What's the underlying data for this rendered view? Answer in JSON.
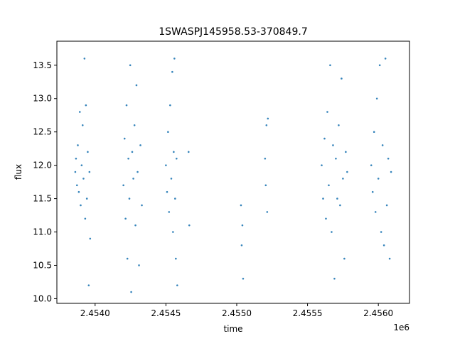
{
  "chart_data": {
    "type": "scatter",
    "title": "1SWASPJ145958.53-370849.7",
    "xlabel": "time",
    "ylabel": "flux",
    "x_offset_label": "1e6",
    "xlim": [
      2453730,
      2456220
    ],
    "ylim": [
      9.93,
      13.86
    ],
    "grid": false,
    "legend": "none",
    "marker_color": "#1f77b4",
    "x_ticks": [
      {
        "value": 2454000,
        "label": "2.4540"
      },
      {
        "value": 2454500,
        "label": "2.4545"
      },
      {
        "value": 2455000,
        "label": "2.4550"
      },
      {
        "value": 2455500,
        "label": "2.4555"
      },
      {
        "value": 2456000,
        "label": "2.4560"
      }
    ],
    "y_ticks": [
      {
        "value": 10.0,
        "label": "10.0"
      },
      {
        "value": 10.5,
        "label": "10.5"
      },
      {
        "value": 11.0,
        "label": "11.0"
      },
      {
        "value": 11.5,
        "label": "11.5"
      },
      {
        "value": 12.0,
        "label": "12.0"
      },
      {
        "value": 12.5,
        "label": "12.5"
      },
      {
        "value": 13.0,
        "label": "13.0"
      },
      {
        "value": 13.5,
        "label": "13.5"
      }
    ],
    "series": [
      {
        "values": [
          {
            "x": 2453860,
            "y": 11.9
          },
          {
            "x": 2453865,
            "y": 12.1
          },
          {
            "x": 2453872,
            "y": 11.7
          },
          {
            "x": 2453878,
            "y": 12.3
          },
          {
            "x": 2453885,
            "y": 11.6
          },
          {
            "x": 2453892,
            "y": 12.8
          },
          {
            "x": 2453898,
            "y": 11.4
          },
          {
            "x": 2453905,
            "y": 12.0
          },
          {
            "x": 2453912,
            "y": 12.6
          },
          {
            "x": 2453918,
            "y": 11.8
          },
          {
            "x": 2453925,
            "y": 13.6
          },
          {
            "x": 2453930,
            "y": 11.2
          },
          {
            "x": 2453935,
            "y": 12.9
          },
          {
            "x": 2453942,
            "y": 11.5
          },
          {
            "x": 2453948,
            "y": 12.2
          },
          {
            "x": 2453955,
            "y": 10.2
          },
          {
            "x": 2453960,
            "y": 11.9
          },
          {
            "x": 2453965,
            "y": 10.9
          },
          {
            "x": 2454200,
            "y": 11.7
          },
          {
            "x": 2454208,
            "y": 12.4
          },
          {
            "x": 2454215,
            "y": 11.2
          },
          {
            "x": 2454222,
            "y": 12.9
          },
          {
            "x": 2454228,
            "y": 10.6
          },
          {
            "x": 2454235,
            "y": 12.1
          },
          {
            "x": 2454242,
            "y": 11.5
          },
          {
            "x": 2454248,
            "y": 13.5
          },
          {
            "x": 2454255,
            "y": 10.1
          },
          {
            "x": 2454262,
            "y": 12.2
          },
          {
            "x": 2454270,
            "y": 11.8
          },
          {
            "x": 2454278,
            "y": 12.6
          },
          {
            "x": 2454285,
            "y": 11.1
          },
          {
            "x": 2454292,
            "y": 13.2
          },
          {
            "x": 2454300,
            "y": 11.9
          },
          {
            "x": 2454310,
            "y": 10.5
          },
          {
            "x": 2454320,
            "y": 12.3
          },
          {
            "x": 2454330,
            "y": 11.4
          },
          {
            "x": 2454500,
            "y": 12.0
          },
          {
            "x": 2454508,
            "y": 11.6
          },
          {
            "x": 2454515,
            "y": 12.5
          },
          {
            "x": 2454522,
            "y": 11.3
          },
          {
            "x": 2454530,
            "y": 12.9
          },
          {
            "x": 2454538,
            "y": 11.8
          },
          {
            "x": 2454545,
            "y": 13.4
          },
          {
            "x": 2454550,
            "y": 11.0
          },
          {
            "x": 2454555,
            "y": 12.2
          },
          {
            "x": 2454560,
            "y": 13.6
          },
          {
            "x": 2454565,
            "y": 11.5
          },
          {
            "x": 2454570,
            "y": 10.6
          },
          {
            "x": 2454575,
            "y": 12.1
          },
          {
            "x": 2454580,
            "y": 10.2
          },
          {
            "x": 2454660,
            "y": 12.2
          },
          {
            "x": 2454665,
            "y": 11.1
          },
          {
            "x": 2455030,
            "y": 11.4
          },
          {
            "x": 2455035,
            "y": 10.8
          },
          {
            "x": 2455040,
            "y": 11.1
          },
          {
            "x": 2455045,
            "y": 10.3
          },
          {
            "x": 2455200,
            "y": 12.1
          },
          {
            "x": 2455205,
            "y": 11.7
          },
          {
            "x": 2455210,
            "y": 12.6
          },
          {
            "x": 2455215,
            "y": 11.3
          },
          {
            "x": 2455220,
            "y": 12.7
          },
          {
            "x": 2455600,
            "y": 12.0
          },
          {
            "x": 2455610,
            "y": 11.5
          },
          {
            "x": 2455620,
            "y": 12.4
          },
          {
            "x": 2455630,
            "y": 11.2
          },
          {
            "x": 2455640,
            "y": 12.8
          },
          {
            "x": 2455650,
            "y": 11.7
          },
          {
            "x": 2455660,
            "y": 13.5
          },
          {
            "x": 2455670,
            "y": 11.0
          },
          {
            "x": 2455680,
            "y": 12.3
          },
          {
            "x": 2455690,
            "y": 10.3
          },
          {
            "x": 2455700,
            "y": 12.1
          },
          {
            "x": 2455710,
            "y": 11.5
          },
          {
            "x": 2455720,
            "y": 12.6
          },
          {
            "x": 2455730,
            "y": 11.4
          },
          {
            "x": 2455740,
            "y": 13.3
          },
          {
            "x": 2455750,
            "y": 11.8
          },
          {
            "x": 2455760,
            "y": 10.6
          },
          {
            "x": 2455770,
            "y": 12.2
          },
          {
            "x": 2455780,
            "y": 11.9
          },
          {
            "x": 2455950,
            "y": 12.0
          },
          {
            "x": 2455960,
            "y": 11.6
          },
          {
            "x": 2455970,
            "y": 12.5
          },
          {
            "x": 2455980,
            "y": 11.3
          },
          {
            "x": 2455990,
            "y": 13.0
          },
          {
            "x": 2456000,
            "y": 11.8
          },
          {
            "x": 2456010,
            "y": 13.5
          },
          {
            "x": 2456020,
            "y": 11.0
          },
          {
            "x": 2456030,
            "y": 12.3
          },
          {
            "x": 2456040,
            "y": 10.8
          },
          {
            "x": 2456050,
            "y": 13.6
          },
          {
            "x": 2456060,
            "y": 11.4
          },
          {
            "x": 2456070,
            "y": 12.1
          },
          {
            "x": 2456080,
            "y": 10.6
          },
          {
            "x": 2456090,
            "y": 11.9
          }
        ]
      }
    ]
  }
}
